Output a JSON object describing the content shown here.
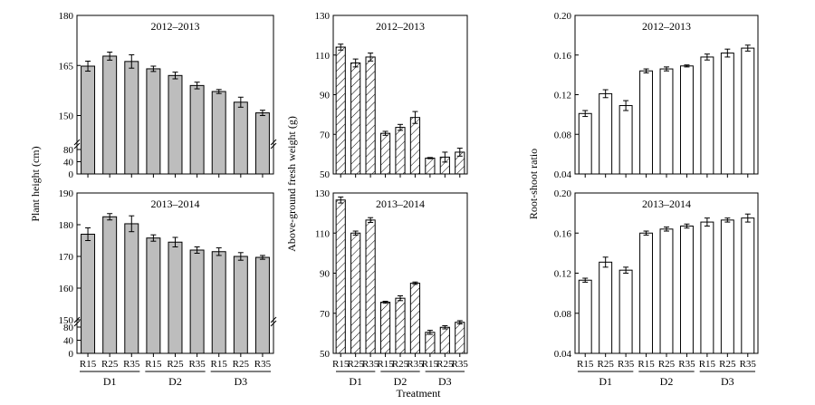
{
  "figure": {
    "xlabel": "Treatment",
    "bar_labels": [
      "R15",
      "R25",
      "R35",
      "R15",
      "R25",
      "R35",
      "R15",
      "R25",
      "R35"
    ],
    "groups": [
      "D1",
      "D2",
      "D3"
    ]
  },
  "chart_data": [
    {
      "type": "bar",
      "panel": "left-top",
      "title": "2012–2013",
      "ylabel": "Plant height (cm)",
      "style": "gray",
      "categories": [
        "R15",
        "R25",
        "R35",
        "R15",
        "R25",
        "R35",
        "R15",
        "R25",
        "R35"
      ],
      "groups": [
        "D1",
        "D2",
        "D3"
      ],
      "values": [
        164.8,
        167.8,
        166.2,
        164.0,
        162.0,
        159.0,
        157.2,
        154.0,
        150.8
      ],
      "errors": [
        1.5,
        1.2,
        2.0,
        0.8,
        1.0,
        1.0,
        0.6,
        1.5,
        0.8
      ],
      "broken_axis": true,
      "lower_ticks": [
        "0",
        "40",
        "80"
      ],
      "upper_ticks": [
        "150",
        "165",
        "180"
      ],
      "upper_range": [
        142,
        180
      ]
    },
    {
      "type": "bar",
      "panel": "left-bottom",
      "title": "2013–2014",
      "ylabel": "Plant height (cm)",
      "style": "gray",
      "categories": [
        "R15",
        "R25",
        "R35",
        "R15",
        "R25",
        "R35",
        "R15",
        "R25",
        "R35"
      ],
      "groups": [
        "D1",
        "D2",
        "D3"
      ],
      "values": [
        177.0,
        182.5,
        180.3,
        175.8,
        174.5,
        172.0,
        171.5,
        170.0,
        169.7
      ],
      "errors": [
        2.0,
        1.0,
        2.5,
        1.0,
        1.5,
        1.0,
        1.2,
        1.2,
        0.6
      ],
      "broken_axis": true,
      "lower_ticks": [
        "0",
        "40",
        "80"
      ],
      "upper_ticks": [
        "150",
        "160",
        "170",
        "180",
        "190"
      ],
      "upper_range": [
        150,
        190
      ]
    },
    {
      "type": "bar",
      "panel": "middle-top",
      "title": "2012–2013",
      "ylabel": "Above-ground fresh weight (g)",
      "style": "hatched",
      "categories": [
        "R15",
        "R25",
        "R35",
        "R15",
        "R25",
        "R35",
        "R15",
        "R25",
        "R35"
      ],
      "groups": [
        "D1",
        "D2",
        "D3"
      ],
      "values": [
        114.0,
        106.0,
        109.0,
        70.5,
        73.5,
        78.5,
        58.0,
        58.5,
        61.0
      ],
      "errors": [
        1.5,
        2.0,
        2.0,
        1.0,
        1.5,
        3.0,
        0.3,
        2.5,
        2.0
      ],
      "ylim": [
        50,
        130
      ],
      "ticks": [
        50,
        70,
        90,
        110,
        130
      ]
    },
    {
      "type": "bar",
      "panel": "middle-bottom",
      "title": "2013–2014",
      "ylabel": "Above-ground fresh weight (g)",
      "style": "hatched",
      "categories": [
        "R15",
        "R25",
        "R35",
        "R15",
        "R25",
        "R35",
        "R15",
        "R25",
        "R35"
      ],
      "groups": [
        "D1",
        "D2",
        "D3"
      ],
      "values": [
        126.5,
        110.0,
        116.5,
        75.5,
        77.5,
        85.0,
        60.5,
        63.0,
        65.5
      ],
      "errors": [
        1.5,
        1.0,
        1.2,
        0.5,
        1.2,
        0.6,
        1.0,
        0.8,
        0.8
      ],
      "ylim": [
        50,
        130
      ],
      "ticks": [
        50,
        70,
        90,
        110,
        130
      ]
    },
    {
      "type": "bar",
      "panel": "right-top",
      "title": "2012–2013",
      "ylabel": "Root-shoot ratio",
      "style": "white",
      "categories": [
        "R15",
        "R25",
        "R35",
        "R15",
        "R25",
        "R35",
        "R15",
        "R25",
        "R35"
      ],
      "groups": [
        "D1",
        "D2",
        "D3"
      ],
      "values": [
        0.101,
        0.121,
        0.109,
        0.144,
        0.146,
        0.149,
        0.158,
        0.162,
        0.167
      ],
      "errors": [
        0.003,
        0.004,
        0.005,
        0.002,
        0.002,
        0.001,
        0.003,
        0.004,
        0.003
      ],
      "ylim": [
        0.04,
        0.2
      ],
      "ticks": [
        "0.04",
        "0.08",
        "0.12",
        "0.16",
        "0.20"
      ]
    },
    {
      "type": "bar",
      "panel": "right-bottom",
      "title": "2013–2014",
      "ylabel": "Root-shoot ratio",
      "style": "white",
      "categories": [
        "R15",
        "R25",
        "R35",
        "R15",
        "R25",
        "R35",
        "R15",
        "R25",
        "R35"
      ],
      "groups": [
        "D1",
        "D2",
        "D3"
      ],
      "values": [
        0.113,
        0.131,
        0.123,
        0.16,
        0.164,
        0.167,
        0.171,
        0.173,
        0.175
      ],
      "errors": [
        0.002,
        0.005,
        0.003,
        0.002,
        0.002,
        0.002,
        0.004,
        0.002,
        0.004
      ],
      "ylim": [
        0.04,
        0.2
      ],
      "ticks": [
        "0.04",
        "0.08",
        "0.12",
        "0.16",
        "0.20"
      ]
    }
  ]
}
